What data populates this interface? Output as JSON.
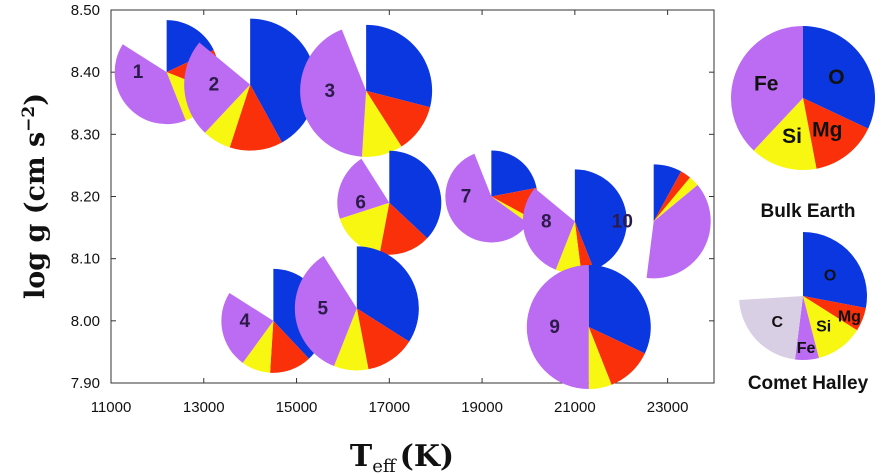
{
  "chart_data": {
    "type": "pie-scatter",
    "xlabel": "T",
    "xlabel_sub": "eff",
    "xlabel_unit": "(K)",
    "ylabel": "log g (cm s",
    "ylabel_sup": "−2",
    "ylabel_close": ")",
    "xlim": [
      11000,
      24000
    ],
    "ylim": [
      7.9,
      8.5
    ],
    "x_ticks": [
      "11000",
      "13000",
      "15000",
      "17000",
      "19000",
      "21000",
      "23000"
    ],
    "y_ticks": [
      "7.90",
      "8.00",
      "8.10",
      "8.20",
      "8.30",
      "8.40",
      "8.50"
    ],
    "element_colors": {
      "O": "#0a37e0",
      "Mg": "#fa300a",
      "Si": "#f7f711",
      "Fe": "#bc6cf2",
      "C": "#d9cfe4"
    },
    "stars": [
      {
        "label": "1",
        "teff": 12200,
        "logg": 8.4,
        "fractions": {
          "O": 0.18,
          "Mg": 0.13,
          "Si": 0.13,
          "Fe": 0.4
        }
      },
      {
        "label": "2",
        "teff": 14000,
        "logg": 8.38,
        "fractions": {
          "O": 0.42,
          "Mg": 0.13,
          "Si": 0.07,
          "Fe": 0.24
        }
      },
      {
        "label": "3",
        "teff": 16500,
        "logg": 8.37,
        "fractions": {
          "O": 0.29,
          "Mg": 0.12,
          "Si": 0.1,
          "Fe": 0.43
        }
      },
      {
        "label": "6",
        "teff": 17000,
        "logg": 8.19,
        "fractions": {
          "O": 0.37,
          "Mg": 0.16,
          "Si": 0.17,
          "Fe": 0.21
        }
      },
      {
        "label": "7",
        "teff": 19200,
        "logg": 8.2,
        "fractions": {
          "O": 0.22,
          "Mg": 0.11,
          "Si": 0.02,
          "Fe": 0.59
        }
      },
      {
        "label": "8",
        "teff": 21000,
        "logg": 8.16,
        "fractions": {
          "O": 0.44,
          "Mg": 0.04,
          "Si": 0.08,
          "Fe": 0.3
        }
      },
      {
        "label": "10",
        "teff": 22700,
        "logg": 8.16,
        "fractions": {
          "O": 0.08,
          "Mg": 0.03,
          "Si": 0.03,
          "Fe": 0.38
        }
      },
      {
        "label": "4",
        "teff": 14500,
        "logg": 8.0,
        "fractions": {
          "O": 0.38,
          "Mg": 0.13,
          "Si": 0.09,
          "Fe": 0.24
        }
      },
      {
        "label": "5",
        "teff": 16300,
        "logg": 8.02,
        "fractions": {
          "O": 0.34,
          "Mg": 0.13,
          "Si": 0.09,
          "Fe": 0.35
        }
      },
      {
        "label": "9",
        "teff": 21300,
        "logg": 7.99,
        "fractions": {
          "O": 0.32,
          "Mg": 0.12,
          "Si": 0.06,
          "Fe": 0.5
        }
      }
    ],
    "references": [
      {
        "name": "Bulk Earth",
        "fractions": {
          "O": 0.32,
          "Mg": 0.15,
          "Si": 0.15,
          "Fe": 0.38
        }
      },
      {
        "name": "Comet Halley",
        "fractions": {
          "O": 0.28,
          "Mg": 0.06,
          "Si": 0.12,
          "Fe": 0.06,
          "C": 0.22
        }
      }
    ]
  }
}
